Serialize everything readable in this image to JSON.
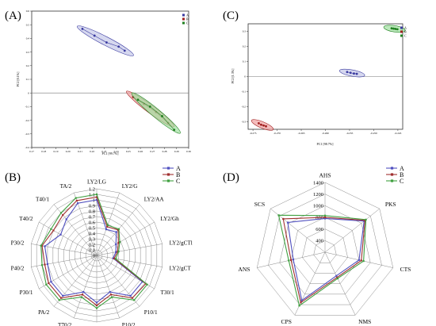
{
  "panels": [
    {
      "letter": "(A)",
      "chart_data": {
        "type": "scatter",
        "xlabel": "PC1 [99.7%]",
        "ylabel": "PC2 [0.1%]",
        "xlim": [
          0.17,
          0.3
        ],
        "ylim": [
          -0.4,
          0.6
        ],
        "xticks": [
          "0.17",
          "0.18",
          "0.19",
          "0.20",
          "0.21",
          "0.22",
          "0.23",
          "0.24",
          "0.25",
          "0.26",
          "0.27",
          "0.28",
          "0.29",
          "0.30"
        ],
        "yticks": [
          "-0.4",
          "-0.3",
          "-0.2",
          "-0.1",
          "0",
          "0.1",
          "0.2",
          "0.3",
          "0.4",
          "0.5",
          "0.6"
        ],
        "legend": [
          "A",
          "B",
          "C"
        ],
        "series": [
          {
            "name": "A",
            "color": "#3a3aa0",
            "fill": "#c4c8e8",
            "x": [
              0.212,
              0.222,
              0.232,
              0.242,
              0.247
            ],
            "y": [
              0.47,
              0.42,
              0.37,
              0.34,
              0.31
            ]
          },
          {
            "name": "B",
            "color": "#a02020",
            "fill": "#f0a0a0",
            "x": [
              0.254,
              0.263,
              0.273,
              0.283
            ],
            "y": [
              -0.03,
              -0.08,
              -0.14,
              -0.22
            ]
          },
          {
            "name": "C",
            "color": "#208020",
            "fill": "#a0e0a0",
            "x": [
              0.258,
              0.268,
              0.278,
              0.288
            ],
            "y": [
              -0.05,
              -0.1,
              -0.17,
              -0.27
            ]
          }
        ]
      }
    },
    {
      "letter": "(C)",
      "chart_data": {
        "type": "scatter",
        "xlabel": "PC1 [98.7%]",
        "ylabel": "PC2 [1.3%]",
        "xlim": [
          -0.276,
          -0.244
        ],
        "ylim": [
          -0.35,
          0.35
        ],
        "xticks": [
          "-0.275",
          "-0.270",
          "-0.265",
          "-0.260",
          "-0.255",
          "-0.250",
          "-0.245"
        ],
        "yticks": [
          "-0.3",
          "-0.2",
          "-0.1",
          "0",
          "0.1",
          "0.2",
          "0.3"
        ],
        "legend": [
          "A",
          "B",
          "C"
        ],
        "series": [
          {
            "name": "A",
            "color": "#3a3aa0",
            "fill": "#c4c8e8",
            "x": [
              -0.2555,
              -0.2548,
              -0.2541,
              -0.2535
            ],
            "y": [
              0.03,
              0.025,
              0.02,
              0.018
            ]
          },
          {
            "name": "B",
            "color": "#a02020",
            "fill": "#f0a0a0",
            "x": [
              -0.2738,
              -0.2733,
              -0.2728,
              -0.2723
            ],
            "y": [
              -0.31,
              -0.32,
              -0.325,
              -0.33
            ]
          },
          {
            "name": "C",
            "color": "#208020",
            "fill": "#a0e0a0",
            "x": [
              -0.2463,
              -0.2459,
              -0.2455,
              -0.2451
            ],
            "y": [
              0.32,
              0.318,
              0.316,
              0.314
            ]
          }
        ]
      }
    },
    {
      "letter": "(B)",
      "chart_data": {
        "type": "radar",
        "rmin": 0,
        "rmax": 1.2,
        "ticks": [
          "0",
          "0.1",
          "0.2",
          "0.3",
          "0.4",
          "0.5",
          "0.6",
          "0.7",
          "0.8",
          "0.9",
          "1",
          "1.1",
          "1.2"
        ],
        "axes": [
          "LY2/LG",
          "LY2/G",
          "LY2/AA",
          "LY2/Gh",
          "LY2/gCTl",
          "LY2/gCT",
          "T30/1",
          "P10/1",
          "P10/2",
          "P40/1",
          "T70/2",
          "PA/2",
          "P30/1",
          "P40/2",
          "P30/2",
          "T40/2",
          "T40/1",
          "TA/2"
        ],
        "legend": [
          "A",
          "B",
          "C"
        ],
        "series": [
          {
            "name": "A",
            "color": "#5050c0",
            "values": [
              1.0,
              0.5,
              0.55,
              0.4,
              0.35,
              0.3,
              0.95,
              0.95,
              0.7,
              0.85,
              0.7,
              0.95,
              0.95,
              0.9,
              0.95,
              0.75,
              0.85,
              1.0
            ]
          },
          {
            "name": "B",
            "color": "#a03030",
            "values": [
              1.05,
              0.55,
              0.6,
              0.45,
              0.38,
              0.32,
              1.02,
              1.0,
              0.75,
              0.9,
              0.75,
              1.0,
              1.0,
              0.95,
              1.0,
              0.9,
              0.95,
              1.05
            ]
          },
          {
            "name": "C",
            "color": "#40a040",
            "values": [
              1.1,
              0.58,
              0.62,
              0.48,
              0.4,
              0.35,
              1.05,
              1.05,
              0.8,
              0.95,
              0.8,
              1.05,
              1.05,
              1.0,
              1.02,
              0.95,
              1.0,
              1.1
            ]
          }
        ]
      }
    },
    {
      "letter": "(D)",
      "chart_data": {
        "type": "radar",
        "rmin": 200,
        "rmax": 1400,
        "ticks": [
          "400",
          "600",
          "800",
          "1000",
          "1200",
          "1400"
        ],
        "axes": [
          "AHS",
          "PKS",
          "CTS",
          "NMS",
          "CPS",
          "ANS",
          "SCS"
        ],
        "legend": [
          "A",
          "B",
          "C"
        ],
        "series": [
          {
            "name": "A",
            "color": "#5050c0",
            "values": [
              780,
              1060,
              800,
              650,
              1120,
              760,
              1020
            ]
          },
          {
            "name": "B",
            "color": "#a03030",
            "values": [
              800,
              1080,
              840,
              680,
              1160,
              800,
              1120
            ]
          },
          {
            "name": "C",
            "color": "#40a040",
            "values": [
              830,
              1100,
              880,
              700,
              1220,
              840,
              1220
            ]
          }
        ]
      }
    }
  ]
}
